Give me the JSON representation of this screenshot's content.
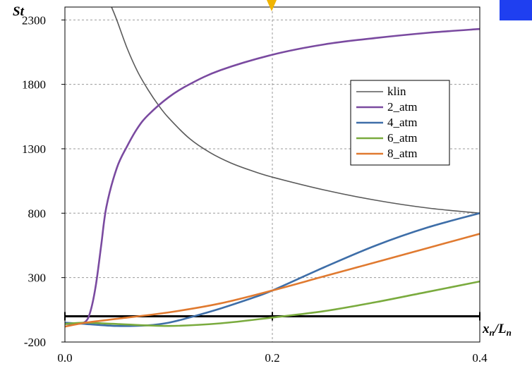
{
  "chart_data": {
    "type": "line",
    "ylabel": "St",
    "xlabel": "xn/Ln",
    "xlim": [
      0,
      0.4
    ],
    "ylim": [
      -200,
      2400
    ],
    "x_ticks": [
      "0.0",
      "0.2",
      "0.4"
    ],
    "x_tick_values": [
      0,
      0.2,
      0.4
    ],
    "y_ticks": [
      "-200",
      "300",
      "800",
      "1300",
      "1800",
      "2300"
    ],
    "y_tick_values": [
      -200,
      300,
      800,
      1300,
      1800,
      2300
    ],
    "grid": "dashed",
    "legend_position": "right",
    "series": [
      {
        "name": "klin",
        "color": "#5a5a5a",
        "x": [
          0.045,
          0.05,
          0.06,
          0.07,
          0.08,
          0.09,
          0.1,
          0.12,
          0.14,
          0.16,
          0.18,
          0.2,
          0.25,
          0.3,
          0.35,
          0.4
        ],
        "y": [
          2400,
          2300,
          2080,
          1900,
          1760,
          1640,
          1540,
          1380,
          1270,
          1190,
          1130,
          1080,
          980,
          900,
          840,
          800
        ]
      },
      {
        "name": "2_atm",
        "color": "#7a4aa0",
        "x": [
          0.0,
          0.01,
          0.02,
          0.025,
          0.03,
          0.035,
          0.04,
          0.05,
          0.06,
          0.07,
          0.08,
          0.1,
          0.12,
          0.15,
          0.2,
          0.25,
          0.3,
          0.35,
          0.4
        ],
        "y": [
          -60,
          -60,
          -40,
          50,
          250,
          550,
          850,
          1150,
          1320,
          1460,
          1560,
          1700,
          1800,
          1910,
          2030,
          2110,
          2160,
          2200,
          2230
        ]
      },
      {
        "name": "4_atm",
        "color": "#3e6ea8",
        "x": [
          0.0,
          0.02,
          0.05,
          0.08,
          0.1,
          0.12,
          0.15,
          0.18,
          0.2,
          0.25,
          0.3,
          0.35,
          0.4
        ],
        "y": [
          -50,
          -60,
          -75,
          -70,
          -50,
          -10,
          60,
          140,
          200,
          380,
          550,
          690,
          800
        ]
      },
      {
        "name": "6_atm",
        "color": "#7aab3e",
        "x": [
          0.0,
          0.02,
          0.05,
          0.1,
          0.15,
          0.2,
          0.25,
          0.3,
          0.35,
          0.4
        ],
        "y": [
          -60,
          -50,
          -60,
          -75,
          -55,
          -10,
          40,
          110,
          190,
          270
        ]
      },
      {
        "name": "8_atm",
        "color": "#e07a30",
        "x": [
          0.0,
          0.02,
          0.05,
          0.1,
          0.15,
          0.2,
          0.25,
          0.3,
          0.35,
          0.4
        ],
        "y": [
          -80,
          -50,
          -20,
          30,
          100,
          200,
          310,
          420,
          530,
          640
        ]
      }
    ]
  },
  "decorations": {
    "top_marker_color": "#f0b400",
    "corner_box_color": "#1f3ff0"
  }
}
